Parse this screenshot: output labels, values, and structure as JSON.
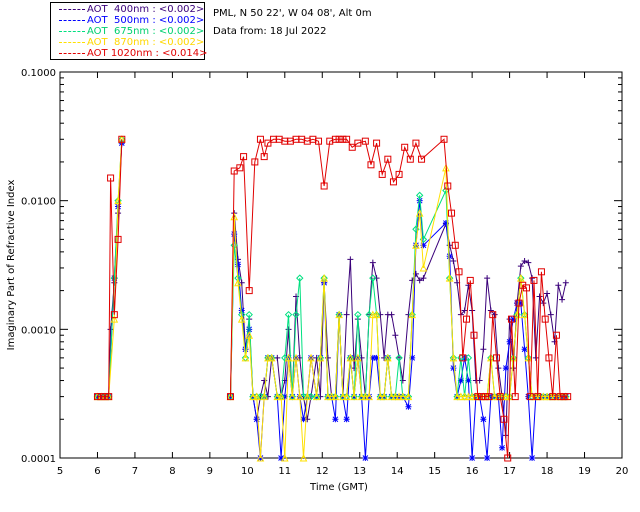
{
  "chart_data": {
    "type": "line",
    "title": "",
    "location_text": "PML, N 50 22', W 04 08', Alt 0m",
    "date_text": "Data from: 18 Jul 2022",
    "xlabel": "Time (GMT)",
    "ylabel": "Imaginary Part of Refractive Index",
    "xlim": [
      5,
      20
    ],
    "ylim": [
      0.0001,
      0.1
    ],
    "y_scale": "log",
    "x_ticks": [
      "5",
      "6",
      "7",
      "8",
      "9",
      "10",
      "11",
      "12",
      "13",
      "14",
      "15",
      "16",
      "17",
      "18",
      "19",
      "20"
    ],
    "y_ticks": [
      "0.0001",
      "0.0010",
      "0.0100",
      "0.1000"
    ],
    "grid": false,
    "legend_position": "top-left",
    "series": [
      {
        "name": "AOT  400nm : <0.002>",
        "color": "#3a007a",
        "marker": "plus",
        "x": [
          6.0,
          6.1,
          6.2,
          6.3,
          6.35,
          6.45,
          6.55,
          6.65,
          9.55,
          9.65,
          9.75,
          9.85,
          9.95,
          10.05,
          10.15,
          10.25,
          10.35,
          10.45,
          10.55,
          10.65,
          10.8,
          10.9,
          11.0,
          11.1,
          11.2,
          11.3,
          11.4,
          11.5,
          11.6,
          11.7,
          11.85,
          11.95,
          12.05,
          12.15,
          12.25,
          12.35,
          12.45,
          12.55,
          12.65,
          12.75,
          12.85,
          12.95,
          13.05,
          13.15,
          13.25,
          13.35,
          13.45,
          13.55,
          13.65,
          13.75,
          13.85,
          13.95,
          14.05,
          14.15,
          14.3,
          14.4,
          14.5,
          14.6,
          14.7,
          15.3,
          15.4,
          15.5,
          15.6,
          15.7,
          15.8,
          15.9,
          16.0,
          16.1,
          16.2,
          16.3,
          16.4,
          16.5,
          16.6,
          16.7,
          16.8,
          16.9,
          17.0,
          17.1,
          17.2,
          17.3,
          17.4,
          17.5,
          17.6,
          17.7,
          17.8,
          17.9,
          18.0,
          18.1,
          18.2,
          18.3,
          18.4,
          18.5
        ],
        "values": [
          0.0003,
          0.0003,
          0.0003,
          0.0003,
          0.001,
          0.0023,
          0.008,
          0.028,
          0.0003,
          0.008,
          0.0035,
          0.0023,
          0.0007,
          0.0012,
          0.0003,
          0.0002,
          0.0003,
          0.0004,
          0.0003,
          0.0006,
          0.0006,
          0.0003,
          0.0004,
          0.001,
          0.0003,
          0.0018,
          0.0006,
          0.0003,
          0.0002,
          0.0003,
          0.0006,
          0.0003,
          0.0023,
          0.0006,
          0.0003,
          0.0003,
          0.0013,
          0.0003,
          0.0013,
          0.0035,
          0.0005,
          0.0012,
          0.0006,
          0.0003,
          0.0013,
          0.0033,
          0.0025,
          0.0013,
          0.0006,
          0.0013,
          0.0013,
          0.0009,
          0.0006,
          0.0004,
          0.0013,
          0.0024,
          0.0027,
          0.0024,
          0.0025,
          0.0066,
          0.0045,
          0.0034,
          0.0023,
          0.0013,
          0.0014,
          0.0022,
          0.0014,
          0.0004,
          0.0004,
          0.0007,
          0.0025,
          0.0014,
          0.0013,
          0.0005,
          0.0003,
          0.00015,
          0.0012,
          0.0005,
          0.0016,
          0.0031,
          0.0034,
          0.0033,
          0.0025,
          0.0006,
          0.0018,
          0.0016,
          0.0019,
          0.0013,
          0.0008,
          0.0022,
          0.0017,
          0.0023
        ],
        "label_pos": 0
      },
      {
        "name": "AOT  500nm : <0.002>",
        "color": "#0000ff",
        "marker": "star",
        "x": [
          6.0,
          6.1,
          6.2,
          6.3,
          6.45,
          6.55,
          6.65,
          9.55,
          9.65,
          9.75,
          9.85,
          9.95,
          10.05,
          10.15,
          10.25,
          10.35,
          10.45,
          10.55,
          10.65,
          10.8,
          10.9,
          11.0,
          11.1,
          11.2,
          11.3,
          11.4,
          11.5,
          11.6,
          11.7,
          11.85,
          11.95,
          12.05,
          12.15,
          12.25,
          12.35,
          12.45,
          12.55,
          12.65,
          12.75,
          12.85,
          12.95,
          13.05,
          13.15,
          13.25,
          13.35,
          13.45,
          13.55,
          13.65,
          13.75,
          13.85,
          13.95,
          14.05,
          14.15,
          14.3,
          14.4,
          14.5,
          14.6,
          14.7,
          15.3,
          15.4,
          15.5,
          15.6,
          15.7,
          15.8,
          15.9,
          16.0,
          16.1,
          16.2,
          16.3,
          16.4,
          16.5,
          16.6,
          16.7,
          16.8,
          16.9,
          17.0,
          17.1,
          17.2,
          17.3,
          17.4,
          17.5,
          17.6,
          17.7,
          17.8,
          17.9,
          18.0,
          18.1,
          18.2,
          18.3,
          18.4,
          18.5
        ],
        "values": [
          0.0003,
          0.0003,
          0.0003,
          0.0003,
          0.0025,
          0.009,
          0.028,
          0.0003,
          0.0055,
          0.0032,
          0.0014,
          0.0007,
          0.001,
          0.0003,
          0.0002,
          0.0001,
          0.0003,
          0.0006,
          0.0006,
          0.0003,
          0.0001,
          0.0003,
          0.0006,
          0.0003,
          0.0006,
          0.0003,
          0.0002,
          0.0003,
          0.0006,
          0.0003,
          0.0006,
          0.0023,
          0.0003,
          0.0003,
          0.0002,
          0.0013,
          0.0003,
          0.0002,
          0.0006,
          0.0003,
          0.0006,
          0.0003,
          0.0001,
          0.0003,
          0.0006,
          0.0006,
          0.0003,
          0.0003,
          0.0006,
          0.0003,
          0.0003,
          0.0003,
          0.0003,
          0.00025,
          0.0006,
          0.0045,
          0.01,
          0.0045,
          0.0067,
          0.0037,
          0.0005,
          0.0003,
          0.0004,
          0.0006,
          0.0004,
          0.0001,
          0.0003,
          0.0003,
          0.0002,
          0.0001,
          0.0003,
          0.0003,
          0.0003,
          0.00012,
          0.0005,
          0.0008,
          0.0012,
          0.0016,
          0.0016,
          0.0007,
          0.0003,
          0.0001,
          0.0003,
          0.0003,
          0.0003,
          0.0003,
          0.0003,
          0.0003,
          0.0003,
          0.0003,
          0.0003
        ],
        "label_pos": 1
      },
      {
        "name": "AOT  675nm : <0.002>",
        "color": "#00e080",
        "marker": "diamond",
        "x": [
          6.0,
          6.1,
          6.2,
          6.3,
          6.45,
          6.55,
          6.65,
          9.55,
          9.65,
          9.75,
          9.85,
          9.95,
          10.05,
          10.15,
          10.25,
          10.35,
          10.45,
          10.55,
          10.65,
          10.8,
          10.9,
          11.0,
          11.1,
          11.2,
          11.3,
          11.4,
          11.5,
          11.6,
          11.7,
          11.85,
          11.95,
          12.05,
          12.15,
          12.25,
          12.35,
          12.45,
          12.55,
          12.65,
          12.75,
          12.85,
          12.95,
          13.05,
          13.15,
          13.25,
          13.35,
          13.45,
          13.55,
          13.65,
          13.75,
          13.85,
          13.95,
          14.05,
          14.15,
          14.3,
          14.4,
          14.5,
          14.6,
          14.7,
          15.3,
          15.4,
          15.5,
          15.6,
          15.7,
          15.8,
          15.9,
          16.0,
          16.1,
          16.2,
          16.3,
          16.4,
          16.5,
          16.6,
          16.7,
          16.8,
          16.9,
          17.0,
          17.1,
          17.2,
          17.3,
          17.4,
          17.5,
          17.6,
          17.7,
          17.8,
          17.9,
          18.0,
          18.1,
          18.2,
          18.3,
          18.4,
          18.5
        ],
        "values": [
          0.0003,
          0.0003,
          0.0003,
          0.0003,
          0.0025,
          0.01,
          0.03,
          0.0003,
          0.0045,
          0.0025,
          0.0013,
          0.0006,
          0.0013,
          0.0003,
          0.0003,
          0.0003,
          0.0003,
          0.0006,
          0.0006,
          0.0003,
          0.0003,
          0.0006,
          0.0013,
          0.0003,
          0.0013,
          0.0025,
          0.0003,
          0.0003,
          0.0003,
          0.0003,
          0.0006,
          0.0025,
          0.0003,
          0.0003,
          0.0003,
          0.0013,
          0.0003,
          0.0003,
          0.0006,
          0.0003,
          0.0013,
          0.0003,
          0.0003,
          0.0013,
          0.0025,
          0.0013,
          0.0003,
          0.0003,
          0.0006,
          0.0003,
          0.0003,
          0.0006,
          0.0003,
          0.0003,
          0.0013,
          0.006,
          0.011,
          0.005,
          0.012,
          0.0025,
          0.0006,
          0.0003,
          0.0006,
          0.0003,
          0.0006,
          0.0003,
          0.0003,
          0.0003,
          0.0003,
          0.0003,
          0.0006,
          0.0003,
          0.0003,
          0.0003,
          0.0003,
          0.0003,
          0.0006,
          0.0013,
          0.0025,
          0.0013,
          0.0006,
          0.0003,
          0.0003,
          0.0003,
          0.0003,
          0.0003,
          0.0003,
          0.0003,
          0.0003,
          0.0003,
          0.0003
        ],
        "label_pos": 2
      },
      {
        "name": "AOT  870nm : <0.002>",
        "color": "#ffe000",
        "marker": "triangle",
        "x": [
          6.0,
          6.1,
          6.2,
          6.3,
          6.45,
          6.55,
          6.65,
          9.55,
          9.65,
          9.75,
          9.85,
          9.95,
          10.05,
          10.15,
          10.25,
          10.35,
          10.45,
          10.55,
          10.65,
          10.8,
          10.9,
          11.0,
          11.1,
          11.2,
          11.3,
          11.4,
          11.5,
          11.6,
          11.7,
          11.85,
          11.95,
          12.05,
          12.15,
          12.25,
          12.35,
          12.45,
          12.55,
          12.65,
          12.75,
          12.85,
          12.95,
          13.05,
          13.15,
          13.25,
          13.35,
          13.45,
          13.55,
          13.65,
          13.75,
          13.85,
          13.95,
          14.05,
          14.15,
          14.3,
          14.4,
          14.5,
          14.6,
          14.7,
          15.3,
          15.4,
          15.5,
          15.6,
          15.7,
          15.8,
          15.9,
          16.0,
          16.1,
          16.2,
          16.3,
          16.4,
          16.5,
          16.6,
          16.7,
          16.8,
          16.9,
          17.0,
          17.1,
          17.2,
          17.3,
          17.4,
          17.5,
          17.6,
          17.7,
          17.8,
          17.9,
          18.0,
          18.1,
          18.2,
          18.3,
          18.4,
          18.5
        ],
        "values": [
          0.0003,
          0.0003,
          0.0003,
          0.0003,
          0.0012,
          0.01,
          0.03,
          0.0003,
          0.0075,
          0.0023,
          0.0012,
          0.0006,
          0.0009,
          0.0003,
          0.0003,
          0.0001,
          0.0003,
          0.0006,
          0.0006,
          0.0003,
          0.0003,
          0.0001,
          0.0006,
          0.0003,
          0.0006,
          0.0003,
          0.0001,
          0.0003,
          0.0006,
          0.0003,
          0.0006,
          0.0025,
          0.0003,
          0.0003,
          0.0003,
          0.0013,
          0.0003,
          0.0003,
          0.0006,
          0.0003,
          0.0006,
          0.0003,
          0.0003,
          0.0003,
          0.0013,
          0.0013,
          0.0003,
          0.0003,
          0.0006,
          0.0003,
          0.0003,
          0.0003,
          0.0003,
          0.0003,
          0.0013,
          0.0045,
          0.008,
          0.003,
          0.018,
          0.0025,
          0.0006,
          0.0003,
          0.0003,
          0.0003,
          0.0003,
          0.0003,
          0.0003,
          0.0003,
          0.0003,
          0.0003,
          0.0006,
          0.0003,
          0.0003,
          0.0003,
          0.0003,
          0.0003,
          0.0006,
          0.0013,
          0.0025,
          0.0013,
          0.0006,
          0.0003,
          0.0003,
          0.0003,
          0.0003,
          0.0003,
          0.0003,
          0.0003,
          0.0003,
          0.0003,
          0.0003
        ],
        "label_pos": 3
      },
      {
        "name": "AOT 1020nm : <0.014>",
        "color": "#e00000",
        "marker": "square",
        "x": [
          6.0,
          6.1,
          6.2,
          6.3,
          6.35,
          6.45,
          6.55,
          6.65,
          9.55,
          9.65,
          9.8,
          9.9,
          10.05,
          10.2,
          10.35,
          10.45,
          10.55,
          10.7,
          10.85,
          11.0,
          11.15,
          11.3,
          11.45,
          11.6,
          11.75,
          11.9,
          12.05,
          12.2,
          12.35,
          12.45,
          12.55,
          12.65,
          12.8,
          12.95,
          13.15,
          13.3,
          13.45,
          13.6,
          13.75,
          13.9,
          14.05,
          14.2,
          14.35,
          14.5,
          14.65,
          15.25,
          15.35,
          15.45,
          15.55,
          15.65,
          15.75,
          15.85,
          15.95,
          16.05,
          16.15,
          16.25,
          16.35,
          16.45,
          16.55,
          16.65,
          16.75,
          16.85,
          16.95,
          17.05,
          17.15,
          17.25,
          17.35,
          17.45,
          17.55,
          17.65,
          17.75,
          17.85,
          17.95,
          18.05,
          18.15,
          18.25,
          18.35,
          18.45,
          18.55
        ],
        "values": [
          0.0003,
          0.0003,
          0.0003,
          0.0003,
          0.015,
          0.0013,
          0.005,
          0.03,
          0.0003,
          0.017,
          0.018,
          0.022,
          0.002,
          0.02,
          0.03,
          0.022,
          0.028,
          0.03,
          0.03,
          0.029,
          0.029,
          0.03,
          0.03,
          0.029,
          0.03,
          0.029,
          0.013,
          0.029,
          0.03,
          0.03,
          0.03,
          0.03,
          0.026,
          0.028,
          0.029,
          0.019,
          0.028,
          0.016,
          0.021,
          0.014,
          0.016,
          0.026,
          0.021,
          0.028,
          0.021,
          0.03,
          0.013,
          0.008,
          0.0045,
          0.0028,
          0.0006,
          0.0012,
          0.0024,
          0.0009,
          0.0003,
          0.0003,
          0.0003,
          0.0003,
          0.0013,
          0.0006,
          0.0003,
          0.0002,
          0.0001,
          0.0012,
          0.0003,
          0.0016,
          0.0022,
          0.0021,
          0.0003,
          0.0024,
          0.0003,
          0.0028,
          0.0012,
          0.0006,
          0.0003,
          0.0009,
          0.0003,
          0.0003,
          0.0003
        ],
        "label_pos": 4
      }
    ]
  }
}
